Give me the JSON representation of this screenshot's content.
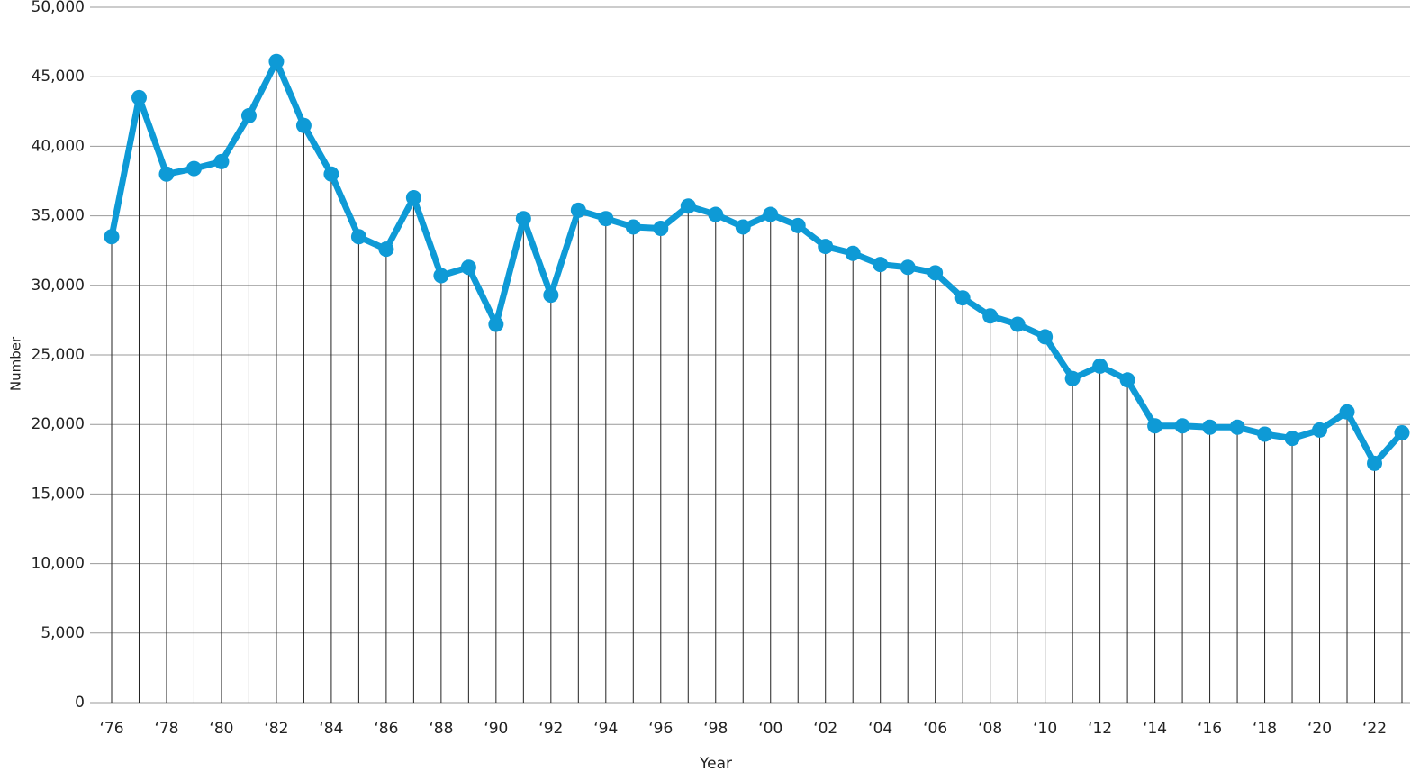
{
  "chart_data": {
    "type": "line",
    "x_label": "Year",
    "y_label": "Number",
    "categories": [
      "‘76",
      null,
      "‘78",
      null,
      "‘80",
      null,
      "‘82",
      null,
      "‘84",
      null,
      "‘86",
      null,
      "‘88",
      null,
      "‘90",
      null,
      "‘92",
      null,
      "‘94",
      null,
      "‘96",
      null,
      "‘98",
      null,
      "‘00",
      null,
      "‘02",
      null,
      "‘04",
      null,
      "‘06",
      null,
      "‘08",
      null,
      "‘10",
      null,
      "‘12",
      null,
      "‘14",
      null,
      "‘16",
      null,
      "‘18",
      null,
      "‘20",
      null,
      "‘22",
      null
    ],
    "series": [
      {
        "color": "#0e9ad6",
        "values": [
          33500,
          43500,
          38000,
          38400,
          38900,
          42200,
          46100,
          41500,
          38000,
          33500,
          32600,
          36300,
          30700,
          31300,
          27200,
          34800,
          29300,
          35400,
          34800,
          34200,
          34100,
          35700,
          35100,
          34200,
          35100,
          34300,
          32800,
          32300,
          31500,
          31300,
          30900,
          29100,
          27800,
          27200,
          26300,
          23300,
          24200,
          23200,
          19900,
          19900,
          19800,
          19800,
          19300,
          19000,
          19600,
          20900,
          17200,
          19400
        ]
      }
    ],
    "ylim": [
      0,
      50000
    ],
    "yticks": [
      0,
      {
        "value": 5000,
        "label": "5,000"
      },
      {
        "value": 10000,
        "label": "10,000"
      },
      {
        "value": 15000,
        "label": "15,000"
      },
      {
        "value": 20000,
        "label": "20,000"
      },
      {
        "value": 25000,
        "label": "25,000"
      },
      {
        "value": 30000,
        "label": "30,000"
      },
      {
        "value": 35000,
        "label": "35,000"
      },
      {
        "value": 40000,
        "label": "40,000"
      },
      {
        "value": 45000,
        "label": "45,000"
      },
      {
        "value": 50000,
        "label": "50,000"
      }
    ],
    "grid": true
  }
}
